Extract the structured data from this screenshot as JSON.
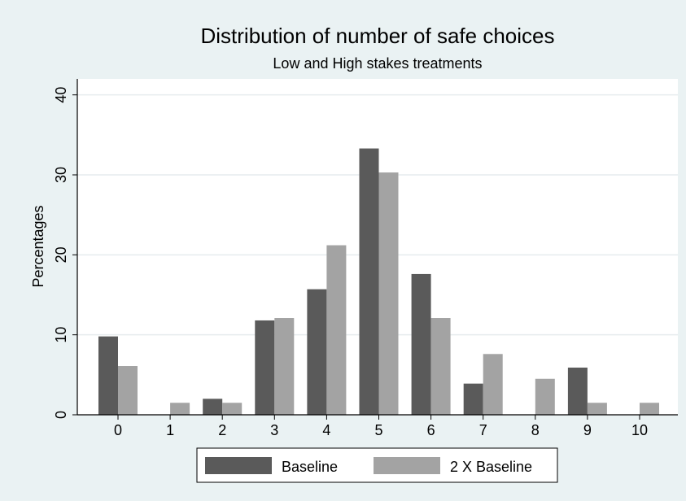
{
  "chart_data": {
    "type": "bar",
    "title": "Distribution of number of safe choices",
    "subtitle": "Low and High stakes treatments",
    "xlabel": "",
    "ylabel": "Percentages",
    "ylim": [
      0,
      42
    ],
    "yticks": [
      0,
      10,
      20,
      30,
      40
    ],
    "categories": [
      "0",
      "1",
      "2",
      "3",
      "4",
      "5",
      "6",
      "7",
      "8",
      "9",
      "10"
    ],
    "series": [
      {
        "name": "Baseline",
        "color": "#5a5a5a",
        "values": [
          9.8,
          0,
          2.0,
          11.8,
          15.7,
          33.3,
          17.6,
          3.9,
          0,
          5.9,
          0
        ]
      },
      {
        "name": "2 X Baseline",
        "color": "#a3a3a3",
        "values": [
          6.1,
          1.5,
          1.5,
          12.1,
          21.2,
          30.3,
          12.1,
          7.6,
          4.5,
          1.5,
          1.5
        ]
      }
    ],
    "grid": true,
    "legend_position": "bottom"
  },
  "colors": {
    "background": "#eaf2f3",
    "plot_background": "#ffffff",
    "gridline": "#e6ecee"
  }
}
